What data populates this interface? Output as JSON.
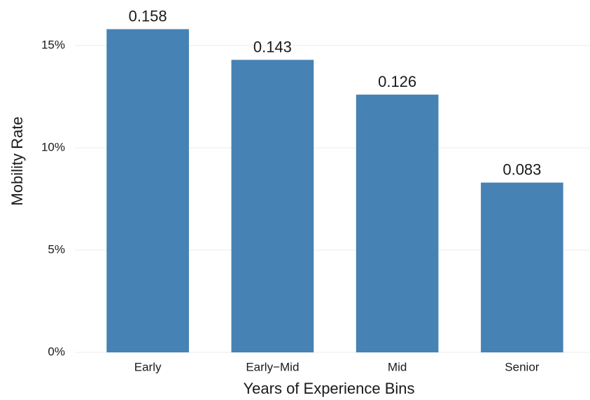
{
  "chart_data": {
    "type": "bar",
    "x_label": "Years of Experience Bins",
    "y_label": "Mobility Rate",
    "categories": [
      "Early",
      "Early−Mid",
      "Mid",
      "Senior"
    ],
    "values": [
      0.158,
      0.143,
      0.126,
      0.083
    ],
    "color": "#4682b4",
    "ylim": [
      0,
      0.165
    ],
    "yticks": [
      {
        "value": 0,
        "label": "0%"
      },
      {
        "value": 0.05,
        "label": "5%"
      },
      {
        "value": 0.1,
        "label": "10%"
      },
      {
        "value": 0.15,
        "label": "15%"
      }
    ],
    "grid": true
  }
}
